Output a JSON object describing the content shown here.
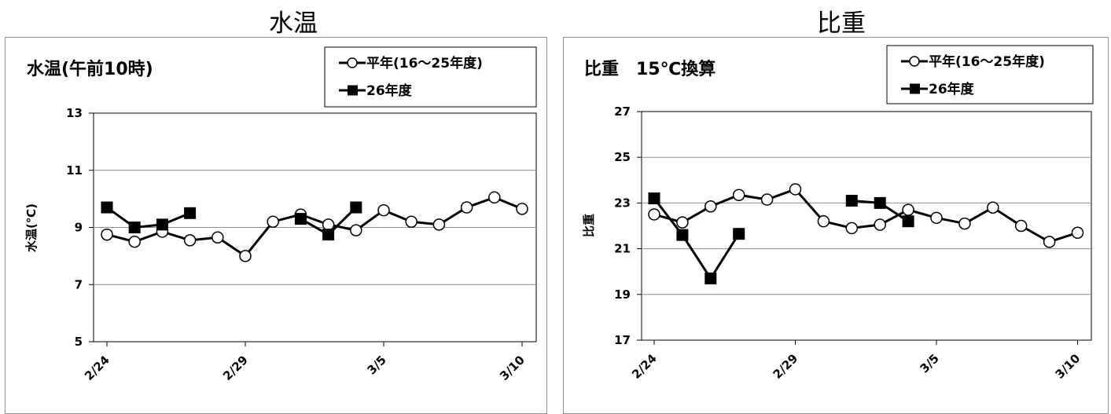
{
  "headings": {
    "left": "水温",
    "right": "比重"
  },
  "chart_data": [
    {
      "type": "line",
      "title": "水温(午前10時)",
      "ylabel": "水温(℃)",
      "xlabel": "",
      "x": [
        "2/24",
        "2/25",
        "2/26",
        "2/27",
        "2/28",
        "2/29",
        "3/1",
        "3/2",
        "3/3",
        "3/4",
        "3/5",
        "3/6",
        "3/7",
        "3/8",
        "3/9",
        "3/10"
      ],
      "xticks": [
        "2/24",
        "2/29",
        "3/5",
        "3/10"
      ],
      "ylim": [
        5,
        13
      ],
      "yticks": [
        5,
        7,
        9,
        11,
        13
      ],
      "grid": true,
      "legend": "top-right",
      "series": [
        {
          "name": "平年(16～25年度)",
          "marker": "circle-open",
          "values": [
            8.75,
            8.5,
            8.85,
            8.55,
            8.65,
            8.0,
            9.2,
            9.45,
            9.1,
            8.9,
            9.6,
            9.2,
            9.1,
            9.7,
            10.05,
            9.65
          ]
        },
        {
          "name": "26年度",
          "marker": "square-filled",
          "values": [
            9.7,
            9.0,
            9.1,
            9.5,
            null,
            null,
            null,
            9.3,
            8.75,
            9.7,
            null,
            null,
            null,
            null,
            null,
            null
          ]
        }
      ]
    },
    {
      "type": "line",
      "title": "比重　15℃換算",
      "ylabel": "比重",
      "xlabel": "",
      "x": [
        "2/24",
        "2/25",
        "2/26",
        "2/27",
        "2/28",
        "2/29",
        "3/1",
        "3/2",
        "3/3",
        "3/4",
        "3/5",
        "3/6",
        "3/7",
        "3/8",
        "3/9",
        "3/10"
      ],
      "xticks": [
        "2/24",
        "2/29",
        "3/5",
        "3/10"
      ],
      "ylim": [
        17,
        27
      ],
      "yticks": [
        17,
        19,
        21,
        23,
        25,
        27
      ],
      "grid": true,
      "legend": "top-right",
      "series": [
        {
          "name": "平年(16～25年度)",
          "marker": "circle-open",
          "values": [
            22.5,
            22.15,
            22.85,
            23.35,
            23.15,
            23.6,
            22.2,
            21.9,
            22.05,
            22.7,
            22.35,
            22.1,
            22.8,
            22.0,
            21.3,
            21.7
          ]
        },
        {
          "name": "26年度",
          "marker": "square-filled",
          "values": [
            23.2,
            21.6,
            19.7,
            21.65,
            null,
            null,
            null,
            23.1,
            23.0,
            22.2,
            null,
            null,
            null,
            null,
            null,
            null
          ]
        }
      ]
    }
  ]
}
